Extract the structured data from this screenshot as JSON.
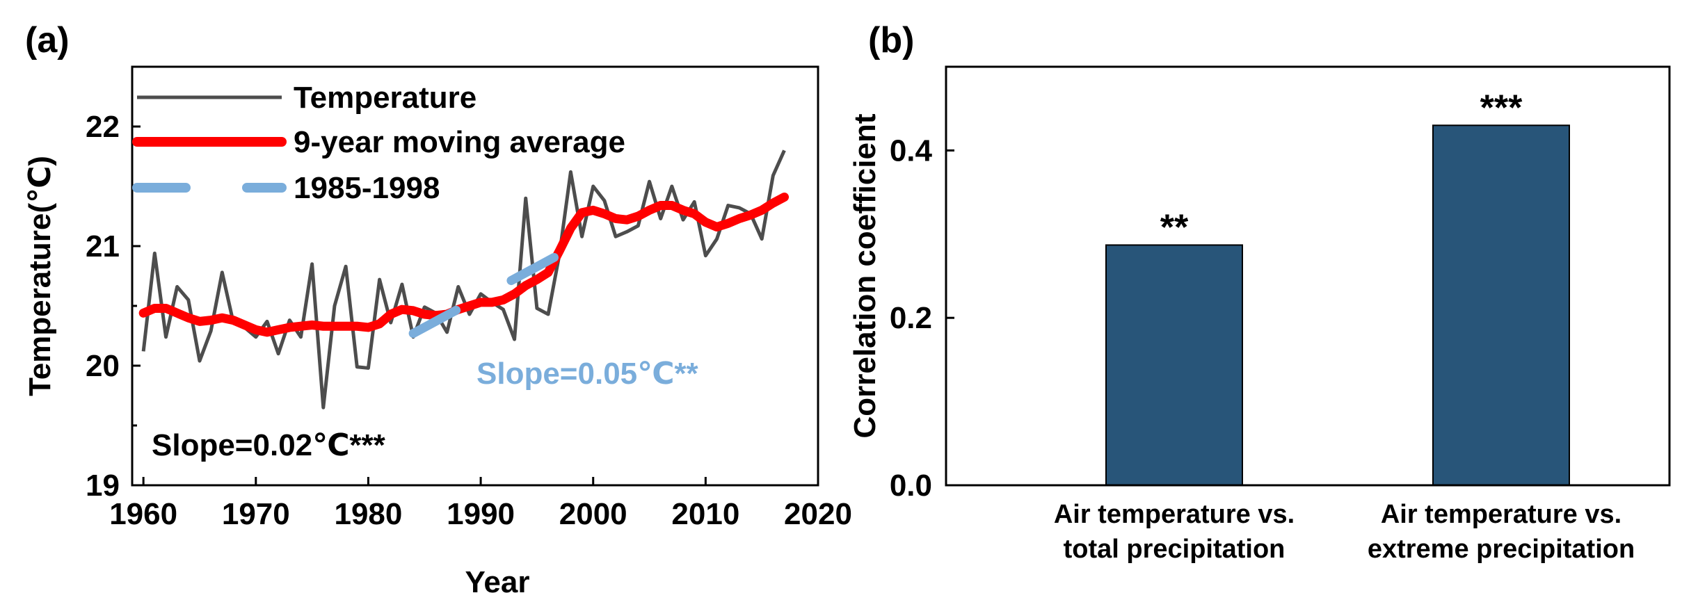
{
  "chart_data": [
    {
      "panel": "(a)",
      "type": "line",
      "xlabel": "Year",
      "ylabel": "Temperature(℃)",
      "xlim": [
        1959,
        2020
      ],
      "ylim": [
        19,
        22.5
      ],
      "xticks": [
        1960,
        1970,
        1980,
        1990,
        2000,
        2010,
        2020
      ],
      "yticks": [
        19,
        20,
        21,
        22
      ],
      "x": [
        1960,
        1961,
        1962,
        1963,
        1964,
        1965,
        1966,
        1967,
        1968,
        1969,
        1970,
        1971,
        1972,
        1973,
        1974,
        1975,
        1976,
        1977,
        1978,
        1979,
        1980,
        1981,
        1982,
        1983,
        1984,
        1985,
        1986,
        1987,
        1988,
        1989,
        1990,
        1991,
        1992,
        1993,
        1994,
        1995,
        1996,
        1997,
        1998,
        1999,
        2000,
        2001,
        2002,
        2003,
        2004,
        2005,
        2006,
        2007,
        2008,
        2009,
        2010,
        2011,
        2012,
        2013,
        2014,
        2015,
        2016,
        2017
      ],
      "series": [
        {
          "name": "Temperature",
          "color": "#4d4d4d",
          "values": [
            20.12,
            20.94,
            20.24,
            20.66,
            20.55,
            20.04,
            20.29,
            20.78,
            20.36,
            20.32,
            20.24,
            20.37,
            20.1,
            20.38,
            20.24,
            20.85,
            19.65,
            20.5,
            20.83,
            19.99,
            19.98,
            20.72,
            20.36,
            20.68,
            20.24,
            20.49,
            20.44,
            20.28,
            20.66,
            20.43,
            20.6,
            20.53,
            20.47,
            20.22,
            21.4,
            20.48,
            20.43,
            20.93,
            21.62,
            21.08,
            21.5,
            21.38,
            21.08,
            21.12,
            21.17,
            21.54,
            21.23,
            21.5,
            21.22,
            21.37,
            20.92,
            21.06,
            21.34,
            21.32,
            21.27,
            21.06,
            21.59,
            21.8
          ]
        },
        {
          "name": "9-year moving average",
          "color": "#ff0000",
          "values": [
            20.44,
            20.48,
            20.48,
            20.44,
            20.4,
            20.37,
            20.38,
            20.4,
            20.38,
            20.34,
            20.3,
            20.28,
            20.3,
            20.32,
            20.33,
            20.34,
            20.33,
            20.33,
            20.33,
            20.33,
            20.32,
            20.35,
            20.43,
            20.47,
            20.46,
            20.43,
            20.42,
            20.43,
            20.47,
            20.5,
            20.53,
            20.53,
            20.55,
            20.6,
            20.67,
            20.72,
            20.78,
            20.96,
            21.15,
            21.28,
            21.3,
            21.27,
            21.23,
            21.22,
            21.25,
            21.3,
            21.34,
            21.34,
            21.3,
            21.27,
            21.2,
            21.16,
            21.19,
            21.23,
            21.26,
            21.3,
            21.36,
            21.41
          ]
        },
        {
          "name": "1985-1998",
          "color": "#7aaddb",
          "dashed": true,
          "x": [
            1984,
            1998
          ],
          "values": [
            20.27,
            20.98
          ]
        }
      ],
      "legend": [
        "Temperature",
        "9-year moving average",
        "1985-1998"
      ],
      "annotations": [
        "Slope=0.02℃***",
        "Slope=0.05℃**"
      ]
    },
    {
      "panel": "(b)",
      "type": "bar",
      "ylabel": "Correlation coefficient",
      "ylim": [
        0,
        0.5
      ],
      "yticks": [
        "0.0",
        "0.2",
        "0.4"
      ],
      "categories": [
        [
          "Air temperature vs.",
          "total precipitation"
        ],
        [
          "Air temperature vs.",
          "extreme precipitation"
        ]
      ],
      "values": [
        0.287,
        0.43
      ],
      "significance": [
        "**",
        "***"
      ],
      "bar_color": "#285579"
    }
  ]
}
